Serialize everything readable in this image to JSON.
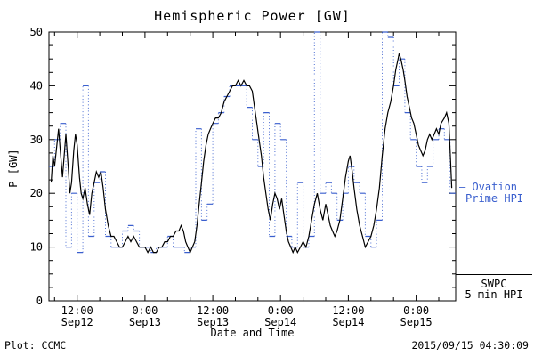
{
  "chart_data": {
    "type": "line",
    "title": "Hemispheric Power [GW]",
    "xlabel": "Date and Time",
    "ylabel": "P [GW]",
    "ylim": [
      0,
      50
    ],
    "yticks": [
      0,
      10,
      20,
      30,
      40,
      50
    ],
    "x_range_hours": [
      7,
      79
    ],
    "x_unit": "hours since Sep12 00:00",
    "grid": false,
    "legend_position": "right-outside",
    "xticks": [
      {
        "t": 12,
        "time": "12:00",
        "date": "Sep12"
      },
      {
        "t": 24,
        "time": "0:00",
        "date": "Sep13"
      },
      {
        "t": 36,
        "time": "12:00",
        "date": "Sep13"
      },
      {
        "t": 48,
        "time": "0:00",
        "date": "Sep14"
      },
      {
        "t": 60,
        "time": "12:00",
        "date": "Sep14"
      },
      {
        "t": 72,
        "time": "0:00",
        "date": "Sep15"
      }
    ],
    "series": [
      {
        "name": "Ovation Prime HPI",
        "style": "step",
        "color": "#3a5fce",
        "points": [
          [
            7,
            25
          ],
          [
            8,
            30
          ],
          [
            9,
            33
          ],
          [
            10,
            10
          ],
          [
            11,
            20
          ],
          [
            12,
            9
          ],
          [
            13,
            40
          ],
          [
            14,
            12
          ],
          [
            15,
            22
          ],
          [
            16,
            24
          ],
          [
            17,
            12
          ],
          [
            18,
            10
          ],
          [
            19,
            10
          ],
          [
            20,
            13
          ],
          [
            21,
            14
          ],
          [
            22,
            13
          ],
          [
            23,
            10
          ],
          [
            24,
            10
          ],
          [
            25,
            9
          ],
          [
            26,
            10
          ],
          [
            27,
            10
          ],
          [
            28,
            12
          ],
          [
            29,
            10
          ],
          [
            30,
            10
          ],
          [
            31,
            9
          ],
          [
            32,
            10
          ],
          [
            33,
            32
          ],
          [
            34,
            15
          ],
          [
            35,
            18
          ],
          [
            36,
            33
          ],
          [
            37,
            35
          ],
          [
            38,
            38
          ],
          [
            39,
            40
          ],
          [
            40,
            40
          ],
          [
            41,
            40
          ],
          [
            42,
            36
          ],
          [
            43,
            30
          ],
          [
            44,
            25
          ],
          [
            45,
            35
          ],
          [
            46,
            12
          ],
          [
            47,
            33
          ],
          [
            48,
            30
          ],
          [
            49,
            12
          ],
          [
            50,
            10
          ],
          [
            51,
            22
          ],
          [
            52,
            10
          ],
          [
            53,
            12
          ],
          [
            54,
            50
          ],
          [
            55,
            20
          ],
          [
            56,
            22
          ],
          [
            57,
            20
          ],
          [
            58,
            15
          ],
          [
            59,
            20
          ],
          [
            60,
            25
          ],
          [
            61,
            22
          ],
          [
            62,
            20
          ],
          [
            63,
            12
          ],
          [
            64,
            10
          ],
          [
            65,
            15
          ],
          [
            66,
            50
          ],
          [
            67,
            49
          ],
          [
            68,
            40
          ],
          [
            69,
            45
          ],
          [
            70,
            35
          ],
          [
            71,
            30
          ],
          [
            72,
            25
          ],
          [
            73,
            22
          ],
          [
            74,
            25
          ],
          [
            75,
            30
          ],
          [
            76,
            32
          ],
          [
            77,
            30
          ],
          [
            78,
            20
          ]
        ]
      },
      {
        "name": "SWPC 5-min HPI",
        "style": "line",
        "color": "#000000",
        "points": [
          [
            7.4,
            22
          ],
          [
            7.7,
            27
          ],
          [
            8,
            25
          ],
          [
            8.4,
            29
          ],
          [
            8.7,
            32
          ],
          [
            9,
            28
          ],
          [
            9.4,
            23
          ],
          [
            9.7,
            27
          ],
          [
            10,
            31
          ],
          [
            10.4,
            25
          ],
          [
            10.7,
            20
          ],
          [
            11,
            22
          ],
          [
            11.4,
            28
          ],
          [
            11.7,
            31
          ],
          [
            12,
            29
          ],
          [
            12.4,
            23
          ],
          [
            12.7,
            20
          ],
          [
            13,
            19
          ],
          [
            13.4,
            21
          ],
          [
            13.8,
            18
          ],
          [
            14.2,
            16
          ],
          [
            14.6,
            20
          ],
          [
            15,
            22
          ],
          [
            15.4,
            24
          ],
          [
            15.8,
            23
          ],
          [
            16.2,
            24
          ],
          [
            16.6,
            21
          ],
          [
            17,
            17
          ],
          [
            17.5,
            14
          ],
          [
            18,
            12
          ],
          [
            18.5,
            12
          ],
          [
            19,
            11
          ],
          [
            19.5,
            10
          ],
          [
            20,
            10
          ],
          [
            20.5,
            11
          ],
          [
            21,
            12
          ],
          [
            21.5,
            11
          ],
          [
            22,
            12
          ],
          [
            22.5,
            11
          ],
          [
            23,
            10
          ],
          [
            23.5,
            10
          ],
          [
            24,
            10
          ],
          [
            24.5,
            9
          ],
          [
            25,
            10
          ],
          [
            25.5,
            9
          ],
          [
            26,
            9
          ],
          [
            26.5,
            10
          ],
          [
            27,
            10
          ],
          [
            27.5,
            11
          ],
          [
            28,
            11
          ],
          [
            28.5,
            12
          ],
          [
            29,
            12
          ],
          [
            29.5,
            13
          ],
          [
            30,
            13
          ],
          [
            30.4,
            14
          ],
          [
            30.8,
            13
          ],
          [
            31.2,
            11
          ],
          [
            31.6,
            10
          ],
          [
            32,
            9
          ],
          [
            32.4,
            10
          ],
          [
            32.8,
            11
          ],
          [
            33.2,
            14
          ],
          [
            33.6,
            18
          ],
          [
            34,
            22
          ],
          [
            34.4,
            26
          ],
          [
            34.8,
            29
          ],
          [
            35.2,
            31
          ],
          [
            35.6,
            32
          ],
          [
            36,
            33
          ],
          [
            36.5,
            34
          ],
          [
            37,
            34
          ],
          [
            37.5,
            35
          ],
          [
            38,
            37
          ],
          [
            38.5,
            38
          ],
          [
            39,
            39
          ],
          [
            39.5,
            40
          ],
          [
            40,
            40
          ],
          [
            40.5,
            41
          ],
          [
            41,
            40
          ],
          [
            41.5,
            41
          ],
          [
            42,
            40
          ],
          [
            42.5,
            40
          ],
          [
            43,
            39
          ],
          [
            43.4,
            36
          ],
          [
            43.8,
            33
          ],
          [
            44.2,
            30
          ],
          [
            44.6,
            27
          ],
          [
            45,
            23
          ],
          [
            45.4,
            20
          ],
          [
            45.8,
            17
          ],
          [
            46.2,
            15
          ],
          [
            46.6,
            18
          ],
          [
            47,
            20
          ],
          [
            47.4,
            19
          ],
          [
            47.8,
            17
          ],
          [
            48.2,
            19
          ],
          [
            48.6,
            16
          ],
          [
            49,
            13
          ],
          [
            49.4,
            11
          ],
          [
            49.8,
            10
          ],
          [
            50.2,
            9
          ],
          [
            50.6,
            10
          ],
          [
            51,
            9
          ],
          [
            51.5,
            10
          ],
          [
            52,
            11
          ],
          [
            52.5,
            10
          ],
          [
            53,
            12
          ],
          [
            53.5,
            15
          ],
          [
            54,
            18
          ],
          [
            54.5,
            20
          ],
          [
            55,
            17
          ],
          [
            55.5,
            15
          ],
          [
            56,
            18
          ],
          [
            56.4,
            16
          ],
          [
            56.8,
            14
          ],
          [
            57.2,
            13
          ],
          [
            57.6,
            12
          ],
          [
            58,
            13
          ],
          [
            58.5,
            15
          ],
          [
            59,
            19
          ],
          [
            59.5,
            23
          ],
          [
            60,
            26
          ],
          [
            60.3,
            27
          ],
          [
            60.7,
            24
          ],
          [
            61,
            21
          ],
          [
            61.5,
            17
          ],
          [
            62,
            14
          ],
          [
            62.5,
            12
          ],
          [
            63,
            10
          ],
          [
            63.5,
            11
          ],
          [
            64,
            12
          ],
          [
            64.5,
            14
          ],
          [
            65,
            17
          ],
          [
            65.5,
            21
          ],
          [
            66,
            27
          ],
          [
            66.5,
            32
          ],
          [
            67,
            35
          ],
          [
            67.5,
            37
          ],
          [
            68,
            40
          ],
          [
            68.4,
            43
          ],
          [
            68.8,
            45
          ],
          [
            69,
            46
          ],
          [
            69.3,
            45
          ],
          [
            69.7,
            43
          ],
          [
            70,
            41
          ],
          [
            70.4,
            38
          ],
          [
            70.8,
            36
          ],
          [
            71.2,
            34
          ],
          [
            71.6,
            33
          ],
          [
            72,
            31
          ],
          [
            72.4,
            29
          ],
          [
            72.8,
            28
          ],
          [
            73.2,
            27
          ],
          [
            73.6,
            28
          ],
          [
            74,
            30
          ],
          [
            74.4,
            31
          ],
          [
            74.8,
            30
          ],
          [
            75.2,
            31
          ],
          [
            75.6,
            32
          ],
          [
            76,
            31
          ],
          [
            76.4,
            33
          ],
          [
            77,
            34
          ],
          [
            77.4,
            35
          ],
          [
            77.8,
            33
          ],
          [
            78.1,
            26
          ],
          [
            78.3,
            21
          ]
        ]
      }
    ]
  },
  "legend": {
    "ovation_line1": "– Ovation",
    "ovation_line2": "Prime HPI",
    "swpc_line1": "SWPC",
    "swpc_line2": "5-min HPI"
  },
  "footer": {
    "left": "Plot: CCMC",
    "right": "2015/09/15 04:30:09"
  }
}
